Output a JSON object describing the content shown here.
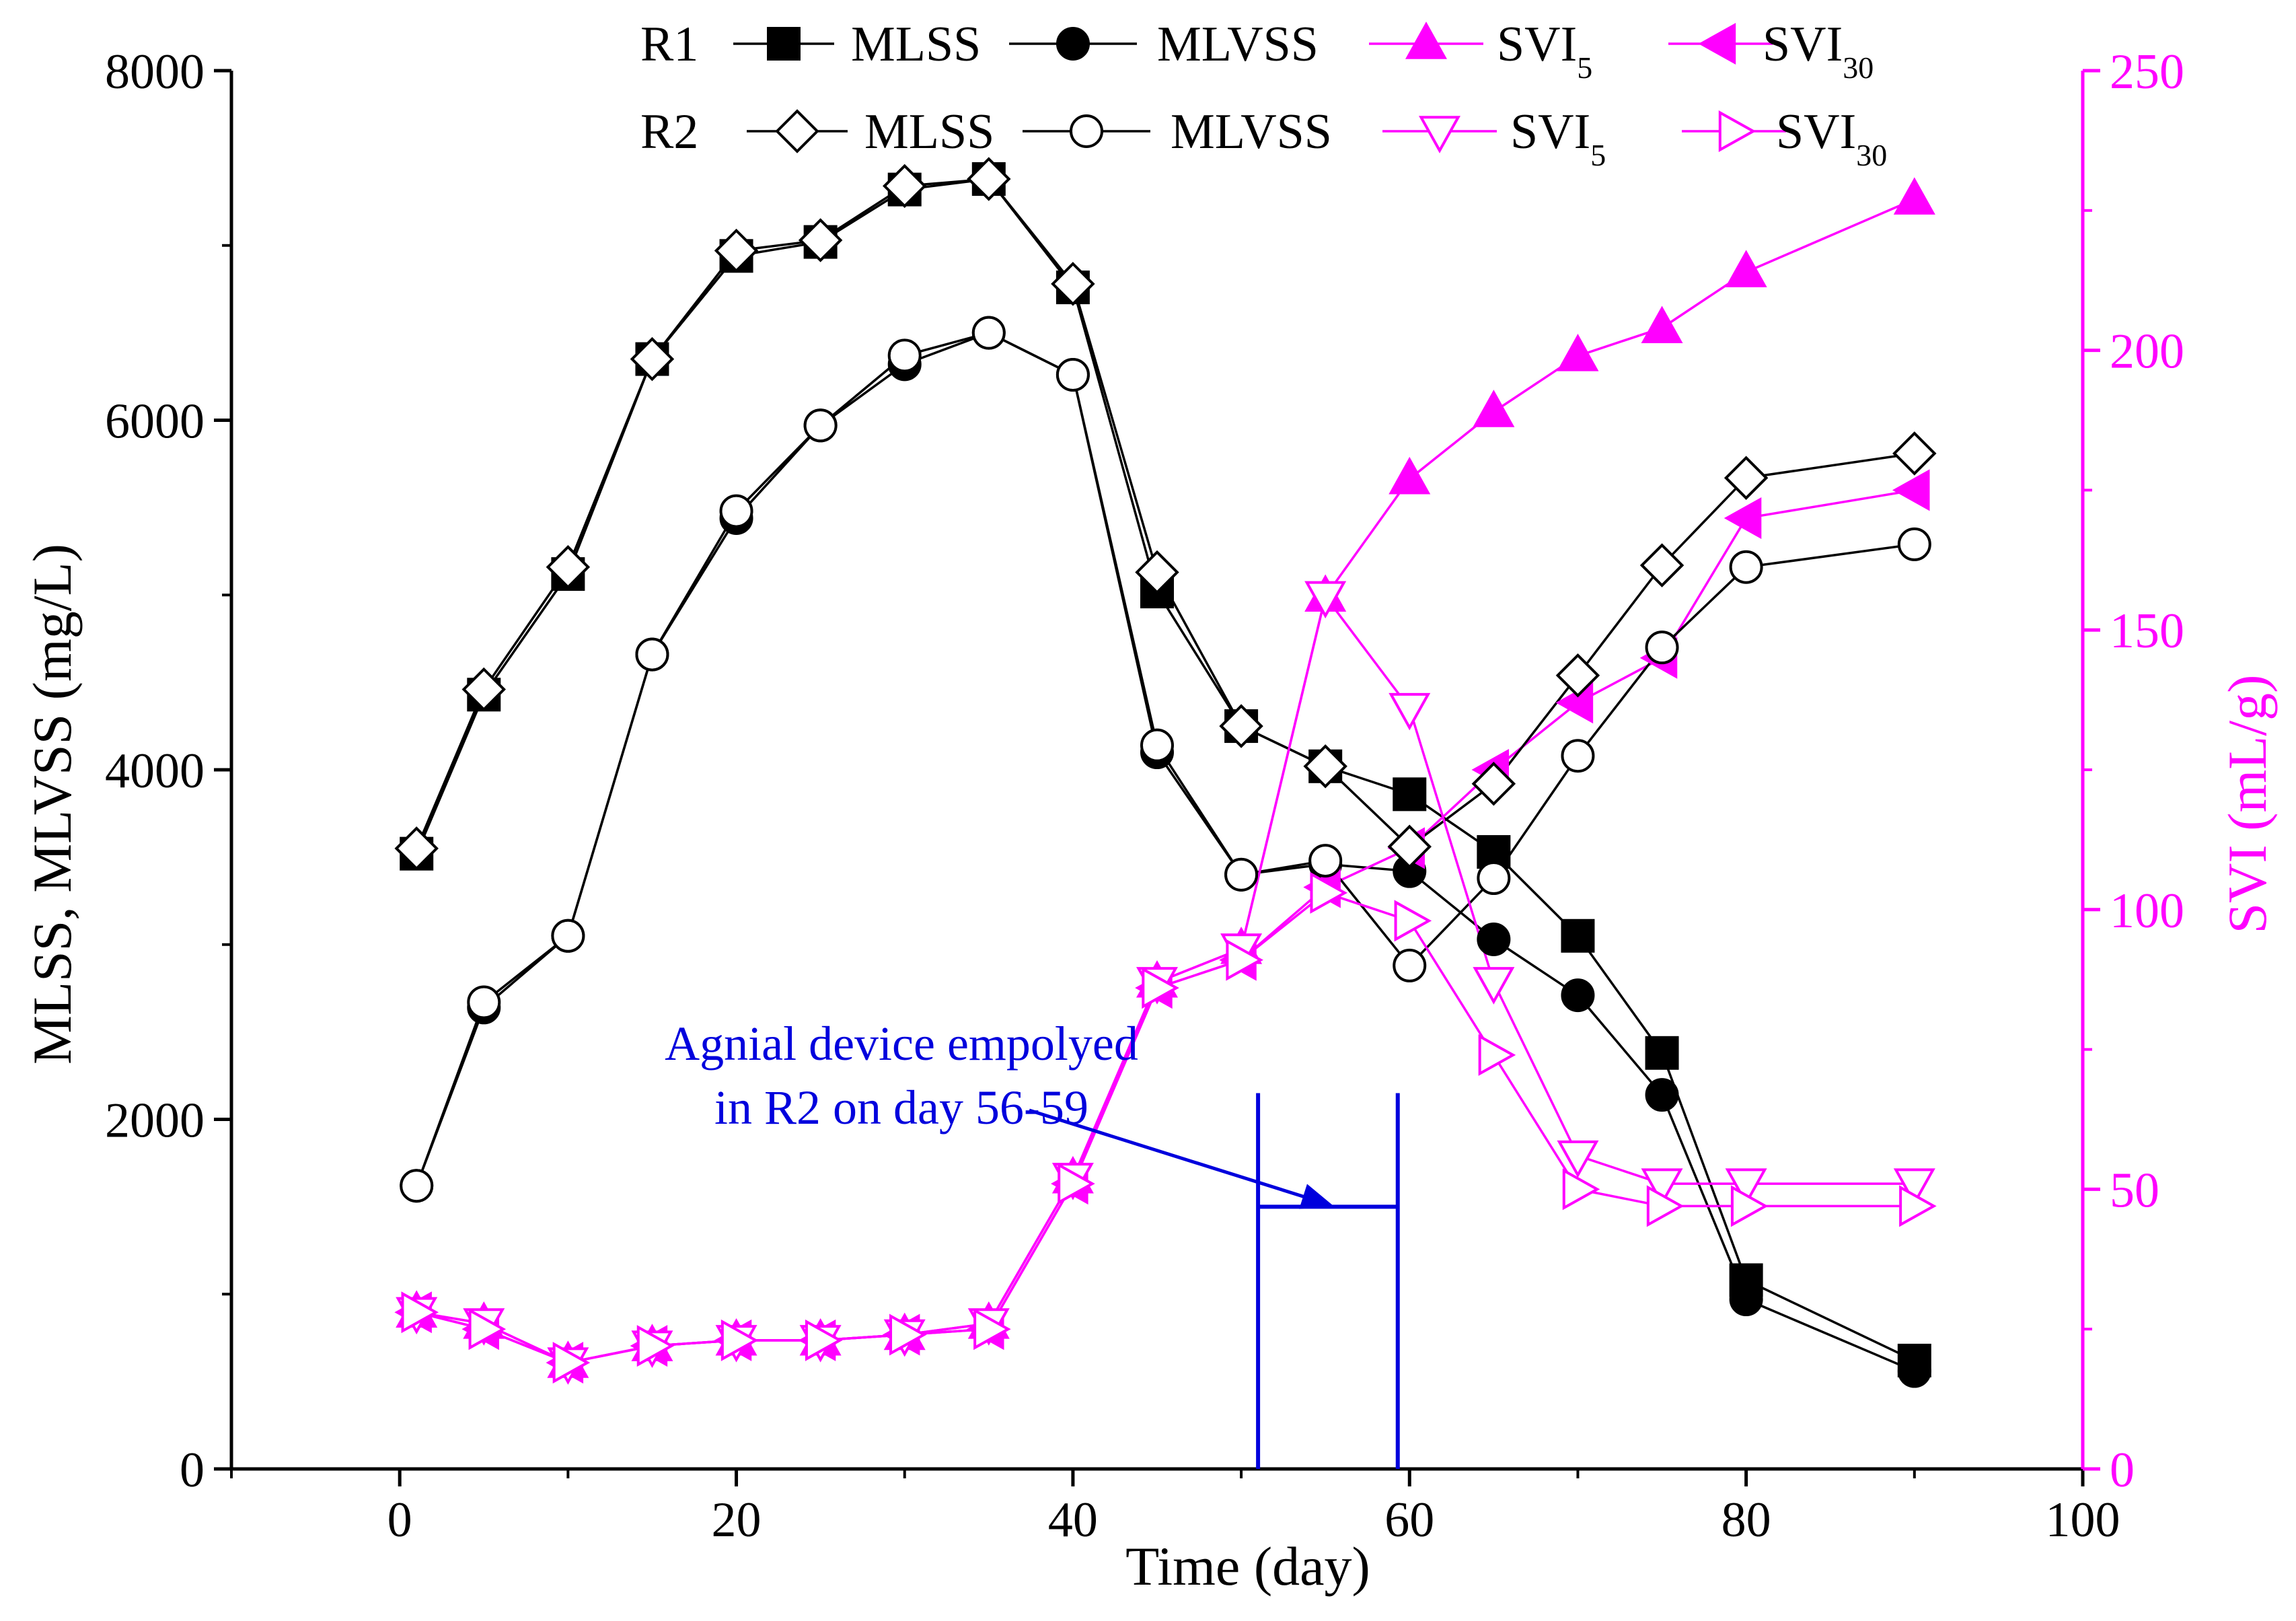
{
  "colors": {
    "axis": "#000000",
    "svi": "#ff00ff",
    "annotation": "#0000dd",
    "background": "#ffffff"
  },
  "chart_data": {
    "type": "line",
    "x_axis": {
      "label": "Time (day)",
      "range": [
        -10,
        100
      ],
      "ticks": [
        0,
        20,
        40,
        60,
        80,
        100
      ],
      "tick_labels": [
        "0",
        "20",
        "40",
        "60",
        "80",
        "100"
      ]
    },
    "y_left": {
      "label": "MLSS, MLVSS (mg/L)",
      "range": [
        0,
        8000
      ],
      "ticks": [
        0,
        2000,
        4000,
        6000,
        8000
      ],
      "tick_labels": [
        "0",
        "2000",
        "4000",
        "6000",
        "8000"
      ]
    },
    "y_right": {
      "label": "SVI (mL/g)",
      "range": [
        0,
        250
      ],
      "ticks": [
        0,
        50,
        100,
        150,
        200,
        250
      ],
      "tick_labels": [
        "0",
        "50",
        "100",
        "150",
        "200",
        "250"
      ]
    },
    "legend": {
      "placement": "top",
      "rows": [
        {
          "reactor": "R1",
          "entries": [
            {
              "text": "MLSS",
              "sub": ""
            },
            {
              "text": "MLVSS",
              "sub": ""
            },
            {
              "text": "SVI",
              "sub": "5"
            },
            {
              "text": "SVI",
              "sub": "30"
            }
          ]
        },
        {
          "reactor": "R2",
          "entries": [
            {
              "text": "MLSS",
              "sub": ""
            },
            {
              "text": "MLVSS",
              "sub": ""
            },
            {
              "text": "SVI",
              "sub": "5"
            },
            {
              "text": "SVI",
              "sub": "30"
            }
          ]
        }
      ]
    },
    "series": [
      {
        "name": "R1 MLSS",
        "axis": "left",
        "marker": "square",
        "filled": true,
        "color": "#000000",
        "x": [
          1,
          5,
          10,
          15,
          20,
          25,
          30,
          35,
          40,
          45,
          50,
          55,
          60,
          65,
          70,
          75,
          80,
          90
        ],
        "y": [
          3520,
          4430,
          5120,
          6350,
          6940,
          7020,
          7320,
          7380,
          6760,
          5020,
          4250,
          4020,
          3860,
          3530,
          3050,
          2380,
          1080,
          620
        ]
      },
      {
        "name": "R1 MLVSS",
        "axis": "left",
        "marker": "circle",
        "filled": true,
        "color": "#000000",
        "x": [
          1,
          5,
          10,
          15,
          20,
          25,
          30,
          35,
          40,
          45,
          50,
          55,
          60,
          65,
          70,
          75,
          80,
          90
        ],
        "y": [
          1620,
          2640,
          3050,
          4660,
          5440,
          5970,
          6320,
          6500,
          6260,
          4100,
          3400,
          3460,
          3420,
          3030,
          2710,
          2140,
          970,
          560
        ]
      },
      {
        "name": "R1 SVI5",
        "axis": "right",
        "marker": "triangle-up",
        "filled": true,
        "color": "#ff00ff",
        "x": [
          1,
          5,
          10,
          15,
          20,
          25,
          30,
          35,
          40,
          45,
          50,
          55,
          60,
          65,
          70,
          75,
          80,
          90
        ],
        "y": [
          28,
          26,
          19,
          22,
          23,
          23,
          24,
          26,
          52,
          87,
          93,
          156,
          177,
          189,
          199,
          204,
          214,
          227
        ]
      },
      {
        "name": "R1 SVI30",
        "axis": "right",
        "marker": "triangle-left",
        "filled": true,
        "color": "#ff00ff",
        "x": [
          1,
          5,
          10,
          15,
          20,
          25,
          30,
          35,
          40,
          45,
          50,
          55,
          60,
          65,
          70,
          75,
          80,
          90
        ],
        "y": [
          28,
          25,
          19,
          22,
          23,
          23,
          24,
          25,
          51,
          86,
          91,
          104,
          111,
          125,
          137,
          145,
          170,
          175
        ]
      },
      {
        "name": "R2 MLSS",
        "axis": "left",
        "marker": "diamond",
        "filled": false,
        "color": "#000000",
        "x": [
          1,
          5,
          10,
          15,
          20,
          25,
          30,
          35,
          40,
          45,
          50,
          55,
          60,
          65,
          70,
          75,
          80,
          90
        ],
        "y": [
          3550,
          4460,
          5160,
          6350,
          6970,
          7030,
          7340,
          7380,
          6780,
          5130,
          4250,
          4020,
          3560,
          3920,
          4540,
          5170,
          5670,
          5810
        ]
      },
      {
        "name": "R2 MLVSS",
        "axis": "left",
        "marker": "circle",
        "filled": false,
        "color": "#000000",
        "x": [
          1,
          5,
          10,
          15,
          20,
          25,
          30,
          35,
          40,
          45,
          50,
          55,
          60,
          65,
          70,
          75,
          80,
          90
        ],
        "y": [
          1620,
          2670,
          3050,
          4660,
          5480,
          5970,
          6370,
          6500,
          6260,
          4140,
          3400,
          3480,
          2880,
          3380,
          4080,
          4700,
          5160,
          5290
        ]
      },
      {
        "name": "R2 SVI5",
        "axis": "right",
        "marker": "triangle-down",
        "filled": false,
        "color": "#ff00ff",
        "x": [
          1,
          5,
          10,
          15,
          20,
          25,
          30,
          35,
          40,
          45,
          50,
          55,
          60,
          65,
          70,
          75,
          80,
          90
        ],
        "y": [
          28,
          26,
          19,
          22,
          23,
          23,
          24,
          26,
          52,
          87,
          93,
          156,
          136,
          87,
          56,
          51,
          51,
          51
        ]
      },
      {
        "name": "R2 SVI30",
        "axis": "right",
        "marker": "triangle-right",
        "filled": false,
        "color": "#ff00ff",
        "x": [
          1,
          5,
          10,
          15,
          20,
          25,
          30,
          35,
          40,
          45,
          50,
          55,
          60,
          65,
          70,
          75,
          80,
          90
        ],
        "y": [
          28,
          25,
          19,
          22,
          23,
          23,
          24,
          25,
          51,
          86,
          91,
          103,
          98,
          74,
          50,
          47,
          47,
          47
        ]
      }
    ],
    "annotation": {
      "lines": [
        "Agnial device empolyed",
        "in R2 on day 56-59"
      ],
      "bracket_x_start": 51,
      "bracket_x_end": 59.3,
      "bracket_y_bottom": 0,
      "bracket_y_top": 2150,
      "bracket_y_mid": 1500,
      "arrow_target_x": 55.5,
      "arrow_target_y": 1500
    }
  }
}
